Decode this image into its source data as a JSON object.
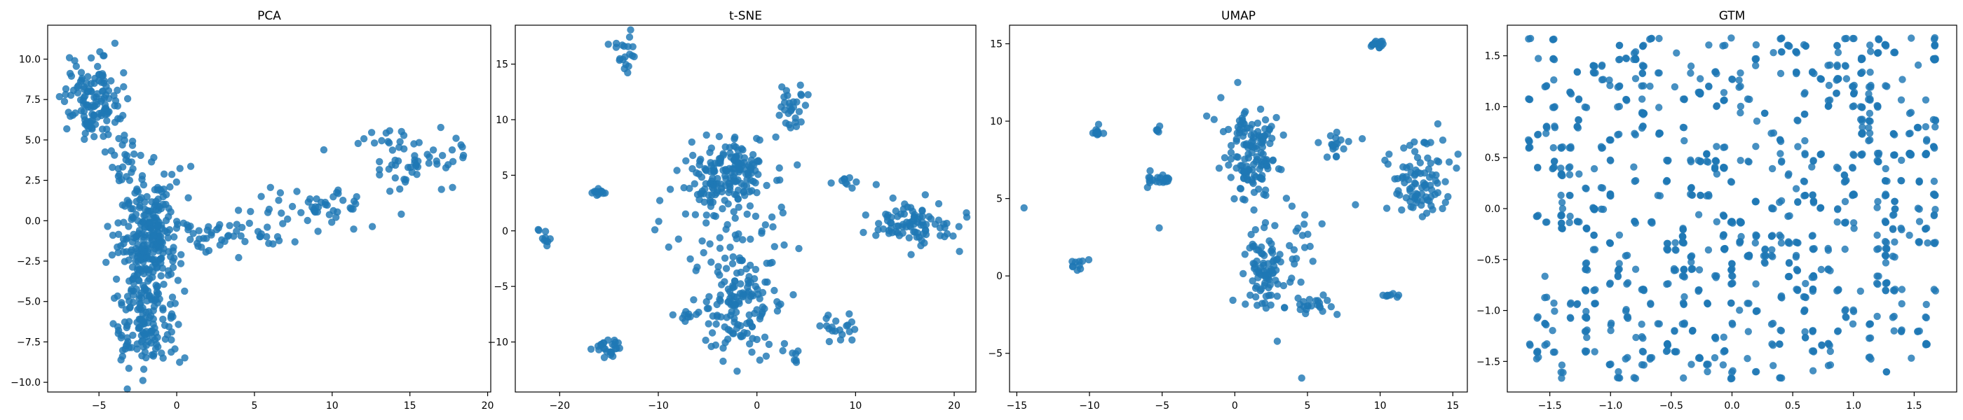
{
  "chart_data": [
    {
      "type": "scatter",
      "title": "PCA",
      "color": "#1f77b4",
      "xlim": [
        -8.3,
        20.2
      ],
      "ylim": [
        -10.6,
        12.1
      ],
      "xticks": [
        -5,
        0,
        5,
        10,
        15,
        20
      ],
      "yticks": [
        -10.0,
        -7.5,
        -5.0,
        -2.5,
        0.0,
        2.5,
        5.0,
        7.5,
        10.0
      ],
      "ytick_labels": [
        "−10.0",
        "−7.5",
        "−5.0",
        "−2.5",
        "0.0",
        "2.5",
        "5.0",
        "7.5",
        "10.0"
      ],
      "xtick_labels": [
        "−5",
        "0",
        "5",
        "10",
        "15",
        "20"
      ],
      "clusters": [
        {
          "cx": -5.5,
          "cy": 7.5,
          "sx": 0.9,
          "sy": 1.3,
          "n": 130
        },
        {
          "cx": -3.5,
          "cy": 4.0,
          "sx": 0.6,
          "sy": 0.9,
          "n": 25
        },
        {
          "cx": -1.8,
          "cy": -1.0,
          "sx": 1.0,
          "sy": 1.8,
          "n": 260
        },
        {
          "cx": -2.0,
          "cy": -6.2,
          "sx": 1.0,
          "sy": 1.4,
          "n": 140
        },
        {
          "cx": 3.0,
          "cy": -1.0,
          "sx": 2.2,
          "sy": 0.6,
          "n": 50
        },
        {
          "cx": 9.0,
          "cy": 1.0,
          "sx": 2.2,
          "sy": 0.7,
          "n": 50
        },
        {
          "cx": 15.0,
          "cy": 3.8,
          "sx": 2.0,
          "sy": 0.8,
          "n": 60
        }
      ]
    },
    {
      "type": "scatter",
      "title": "t-SNE",
      "color": "#1f77b4",
      "xlim": [
        -24.5,
        22.2
      ],
      "ylim": [
        -14.5,
        18.5
      ],
      "xticks": [
        -20,
        -10,
        0,
        10,
        20
      ],
      "yticks": [
        -10,
        -5,
        0,
        5,
        10,
        15
      ],
      "xtick_labels": [
        "−20",
        "−10",
        "0",
        "10",
        "20"
      ],
      "ytick_labels": [
        "−10",
        "−5",
        "0",
        "5",
        "10",
        "15"
      ],
      "clusters": [
        {
          "cx": -3.0,
          "cy": 5.0,
          "sx": 2.2,
          "sy": 1.6,
          "n": 170
        },
        {
          "cx": -1.5,
          "cy": -6.5,
          "sx": 1.8,
          "sy": 2.6,
          "n": 140
        },
        {
          "cx": 16.0,
          "cy": 0.5,
          "sx": 2.4,
          "sy": 1.1,
          "n": 90
        },
        {
          "cx": 3.5,
          "cy": 11.0,
          "sx": 0.8,
          "sy": 1.2,
          "n": 30
        },
        {
          "cx": -13.5,
          "cy": 16.2,
          "sx": 0.6,
          "sy": 0.8,
          "n": 20
        },
        {
          "cx": -15.0,
          "cy": -10.5,
          "sx": 0.6,
          "sy": 0.4,
          "n": 25
        },
        {
          "cx": -16.0,
          "cy": 3.4,
          "sx": 0.5,
          "sy": 0.15,
          "n": 12
        },
        {
          "cx": -21.5,
          "cy": -0.6,
          "sx": 0.3,
          "sy": 0.5,
          "n": 10
        },
        {
          "cx": 8.5,
          "cy": -8.5,
          "sx": 1.0,
          "sy": 0.8,
          "n": 20
        },
        {
          "cx": -7.5,
          "cy": -7.5,
          "sx": 0.8,
          "sy": 0.3,
          "n": 10
        },
        {
          "cx": -3.0,
          "cy": 0.0,
          "sx": 4.0,
          "sy": 2.5,
          "n": 45
        },
        {
          "cx": 9.5,
          "cy": 4.5,
          "sx": 0.5,
          "sy": 0.3,
          "n": 8
        },
        {
          "cx": 4.0,
          "cy": -11.2,
          "sx": 0.3,
          "sy": 0.4,
          "n": 6
        }
      ]
    },
    {
      "type": "scatter",
      "title": "UMAP",
      "color": "#1f77b4",
      "xlim": [
        -15.5,
        16.0
      ],
      "ylim": [
        -7.5,
        16.2
      ],
      "xticks": [
        -15,
        -10,
        -5,
        0,
        5,
        10,
        15
      ],
      "yticks": [
        -5,
        0,
        5,
        10,
        15
      ],
      "xtick_labels": [
        "−15",
        "−10",
        "−5",
        "0",
        "5",
        "10",
        "15"
      ],
      "ytick_labels": [
        "−5",
        "0",
        "5",
        "10",
        "15"
      ],
      "clusters": [
        {
          "cx": 1.2,
          "cy": 8.0,
          "sx": 0.8,
          "sy": 1.4,
          "n": 130
        },
        {
          "cx": 2.0,
          "cy": 0.5,
          "sx": 1.0,
          "sy": 1.4,
          "n": 90
        },
        {
          "cx": 12.8,
          "cy": 6.0,
          "sx": 1.0,
          "sy": 1.3,
          "n": 90
        },
        {
          "cx": 9.8,
          "cy": 15.0,
          "sx": 0.2,
          "sy": 0.15,
          "n": 15
        },
        {
          "cx": -9.5,
          "cy": 9.2,
          "sx": 0.2,
          "sy": 0.2,
          "n": 12
        },
        {
          "cx": -5.2,
          "cy": 6.3,
          "sx": 0.5,
          "sy": 0.3,
          "n": 20
        },
        {
          "cx": -10.7,
          "cy": 0.7,
          "sx": 0.3,
          "sy": 0.2,
          "n": 10
        },
        {
          "cx": 5.3,
          "cy": -1.8,
          "sx": 0.8,
          "sy": 0.4,
          "n": 22
        },
        {
          "cx": 7.0,
          "cy": 8.3,
          "sx": 0.6,
          "sy": 0.4,
          "n": 18
        },
        {
          "cx": 4.5,
          "cy": 2.5,
          "sx": 0.6,
          "sy": 1.5,
          "n": 15
        },
        {
          "cx": 10.7,
          "cy": -1.3,
          "sx": 0.3,
          "sy": 0.1,
          "n": 8
        },
        {
          "cx": -5.4,
          "cy": 9.5,
          "sx": 0.15,
          "sy": 0.1,
          "n": 5
        },
        {
          "cx": -1.0,
          "cy": 11.0,
          "sx": 0.8,
          "sy": 1.2,
          "n": 5
        }
      ],
      "extra_points": [
        [
          -14.5,
          4.4
        ],
        [
          4.6,
          -6.6
        ],
        [
          -5.2,
          3.1
        ],
        [
          8.3,
          4.6
        ],
        [
          0.2,
          12.5
        ]
      ]
    },
    {
      "type": "scatter",
      "title": "GTM",
      "color": "#1f77b4",
      "xlim": [
        -1.85,
        1.85
      ],
      "ylim": [
        -1.8,
        1.8
      ],
      "xticks": [
        -1.5,
        -1.0,
        -0.5,
        0.0,
        0.5,
        1.0,
        1.5
      ],
      "yticks": [
        -1.5,
        -1.0,
        -0.5,
        0.0,
        0.5,
        1.0,
        1.5
      ],
      "xtick_labels": [
        "−1.5",
        "−1.0",
        "−0.5",
        "0.0",
        "0.5",
        "1.0",
        "1.5"
      ],
      "ytick_labels": [
        "−1.5",
        "−1.0",
        "−0.5",
        "0.0",
        "0.5",
        "1.0",
        "1.5"
      ],
      "grid_points": 520
    }
  ]
}
